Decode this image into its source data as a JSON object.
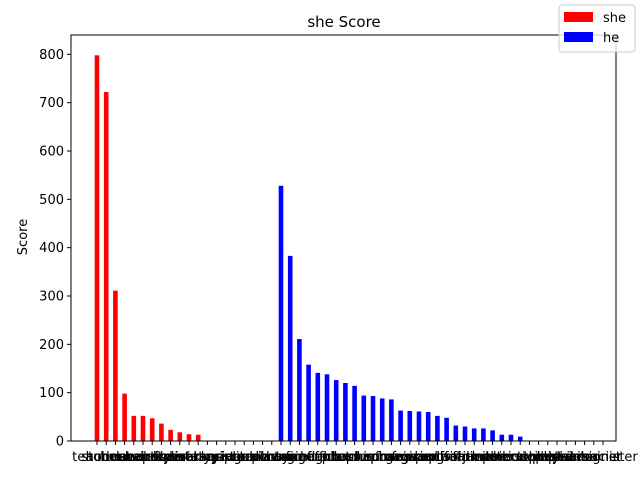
{
  "chart_data": {
    "type": "bar",
    "title": "she Score",
    "xlabel": "",
    "ylabel": "Score",
    "ylim": [
      0,
      840
    ],
    "yticks": [
      0,
      100,
      200,
      300,
      400,
      500,
      600,
      700,
      800
    ],
    "grid": false,
    "legend_placement": "top-right",
    "categories": [
      "teacher",
      "student",
      "nurse",
      "homemaker",
      "dancer",
      "housekeeper",
      "receptionist",
      "hairdresser",
      "stylist",
      "librarian",
      "secretary",
      "nanny",
      "bookkeeper",
      "typist",
      "socialite",
      "singer",
      "model",
      "maid",
      "carpenter",
      "doctor",
      "lawyer",
      "manager",
      "engineer",
      "architect",
      "firefighter",
      "officer",
      "pilot",
      "boss",
      "banker",
      "chief",
      "plumber",
      "mechanic",
      "surgeon",
      "professor",
      "magician",
      "guard",
      "sheriff",
      "captain",
      "chef",
      "programmer",
      "soldier",
      "farmer",
      "janitor",
      "broker",
      "warrior",
      "detective",
      "philosopher",
      "economist",
      "athlete",
      "scientist",
      "planner",
      "physician",
      "painter",
      "pharmacist",
      "designer",
      "administer"
    ],
    "series": [
      {
        "name": "she",
        "color": "#ff0000",
        "values": [
          798,
          722,
          311,
          98,
          52,
          52,
          47,
          36,
          23,
          18,
          14,
          13,
          0,
          0,
          0,
          0,
          0,
          0,
          0,
          0,
          0,
          0,
          0,
          0,
          0,
          0,
          0,
          0,
          0,
          0,
          0,
          0,
          0,
          0,
          0,
          0,
          0,
          0,
          0,
          0,
          0,
          0,
          0,
          0,
          0,
          0,
          0,
          0,
          0,
          0,
          0,
          0,
          0,
          0,
          0,
          0
        ]
      },
      {
        "name": "he",
        "color": "#0000ff",
        "values": [
          0,
          0,
          0,
          0,
          0,
          0,
          0,
          0,
          0,
          0,
          0,
          0,
          0,
          0,
          0,
          0,
          0,
          0,
          0,
          0,
          528,
          383,
          211,
          158,
          141,
          138,
          126,
          120,
          114,
          94,
          93,
          88,
          86,
          63,
          62,
          61,
          60,
          52,
          48,
          32,
          30,
          26,
          26,
          22,
          13,
          13,
          9,
          0,
          0,
          0,
          0,
          0,
          0,
          0,
          0,
          0
        ]
      }
    ]
  }
}
